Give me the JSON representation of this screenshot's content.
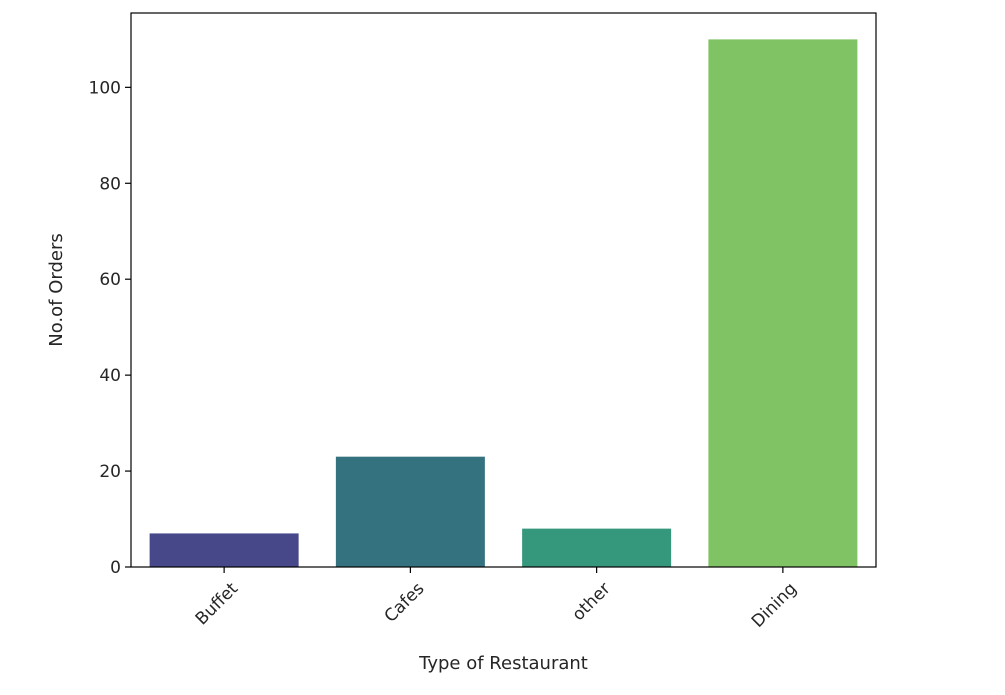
{
  "chart_data": {
    "type": "bar",
    "categories": [
      "Buffet",
      "Cafes",
      "other",
      "Dining"
    ],
    "values": [
      7,
      23,
      8,
      110
    ],
    "colors": [
      "#46488a",
      "#357280",
      "#35987c",
      "#80c365"
    ],
    "xlabel": "Type of Restaurant",
    "ylabel": "No.of Orders",
    "ylim": [
      0,
      115.5
    ],
    "yticks": [
      0,
      20,
      40,
      60,
      80,
      100
    ],
    "xtick_rotation_deg": 45,
    "grid": false,
    "legend": "none"
  }
}
